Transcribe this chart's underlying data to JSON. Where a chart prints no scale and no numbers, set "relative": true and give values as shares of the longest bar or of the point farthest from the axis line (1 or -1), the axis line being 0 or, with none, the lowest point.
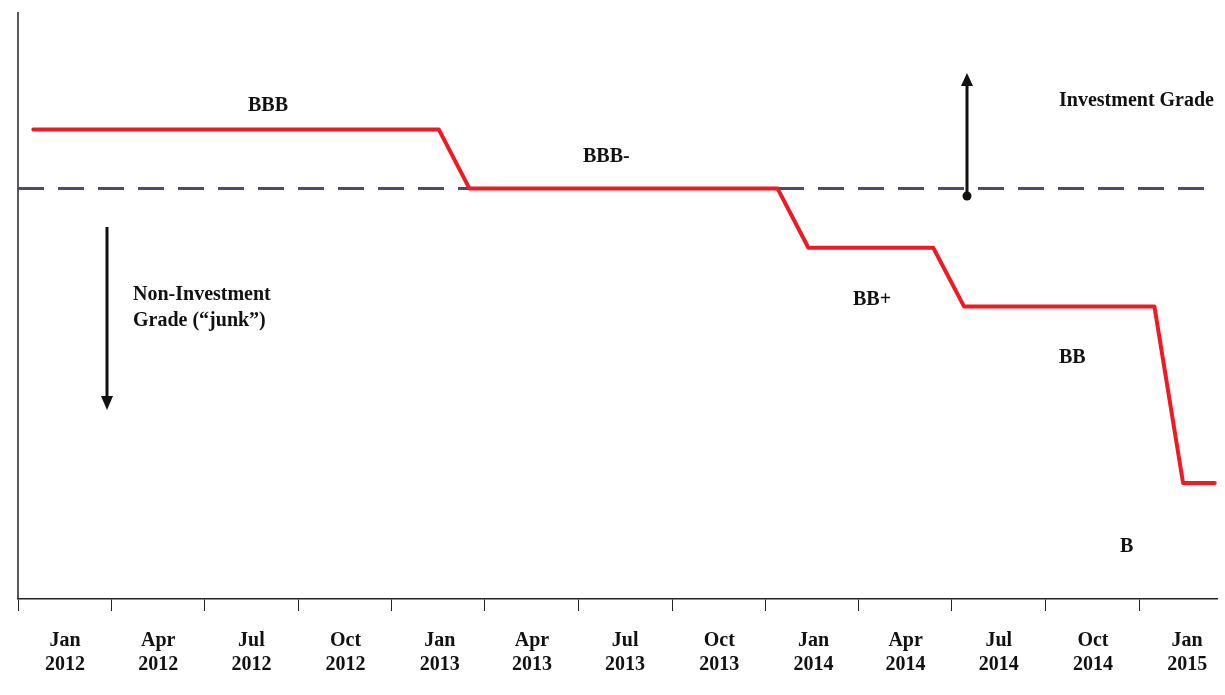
{
  "chart_data": {
    "type": "line",
    "relative": true,
    "legend": false,
    "grid": false,
    "marker": "none",
    "line_style": "solid",
    "xlim": [
      "2011-11-16",
      "2015-01-31"
    ],
    "xticks": [
      {
        "value": "2011-11-16",
        "label": null
      },
      {
        "value": "2012-01-01",
        "label": "Jan 2012"
      },
      {
        "value": "2012-02-15",
        "label": null
      },
      {
        "value": "2012-04-01",
        "label": "Apr 2012"
      },
      {
        "value": "2012-05-16",
        "label": null
      },
      {
        "value": "2012-07-01",
        "label": "Jul 2012"
      },
      {
        "value": "2012-08-16",
        "label": null
      },
      {
        "value": "2012-10-01",
        "label": "Oct 2012"
      },
      {
        "value": "2012-11-15",
        "label": null
      },
      {
        "value": "2013-01-01",
        "label": "Jan 2013"
      },
      {
        "value": "2013-02-14",
        "label": null
      },
      {
        "value": "2013-04-01",
        "label": "Apr 2013"
      },
      {
        "value": "2013-05-16",
        "label": null
      },
      {
        "value": "2013-07-01",
        "label": "Jul 2013"
      },
      {
        "value": "2013-08-16",
        "label": null
      },
      {
        "value": "2013-10-01",
        "label": "Oct 2013"
      },
      {
        "value": "2013-11-15",
        "label": null
      },
      {
        "value": "2014-01-01",
        "label": "Jan 2014"
      },
      {
        "value": "2014-02-14",
        "label": null
      },
      {
        "value": "2014-04-01",
        "label": "Apr 2014"
      },
      {
        "value": "2014-05-16",
        "label": null
      },
      {
        "value": "2014-07-01",
        "label": "Jul 2014"
      },
      {
        "value": "2014-08-16",
        "label": null
      },
      {
        "value": "2014-10-01",
        "label": "Oct 2014"
      },
      {
        "value": "2014-11-15",
        "label": null
      },
      {
        "value": "2015-01-01",
        "label": "Jan 2015"
      }
    ],
    "series": [
      {
        "color": "#ed1c24",
        "x": [
          "2011-12-01",
          "2012-12-31",
          "2013-01-30",
          "2013-11-27",
          "2013-12-27",
          "2014-04-28",
          "2014-05-28",
          "2014-11-30",
          "2014-12-28",
          "2015-01-28"
        ],
        "values": [
          1,
          1,
          0.874,
          0.874,
          0.748,
          0.748,
          0.623,
          0.623,
          0.247,
          0.247
        ]
      }
    ],
    "ref_lines": [
      {
        "axis": "y",
        "value": 0.874,
        "color": "#4b4b6e",
        "line_style": "dashed"
      }
    ],
    "annotations": [
      "BBB",
      "BBB-",
      "BB+",
      "BB",
      "B",
      "Investment Grade",
      "Non-Investment Grade (“junk”)"
    ]
  }
}
